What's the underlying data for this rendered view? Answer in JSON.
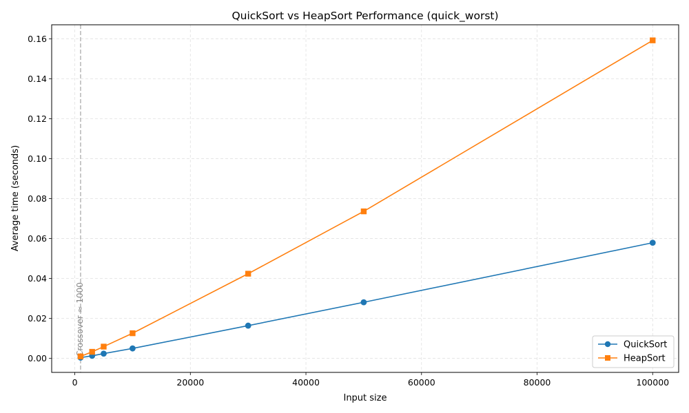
{
  "chart_data": {
    "type": "line",
    "title": "QuickSort vs HeapSort Performance (quick_worst)",
    "xlabel": "Input size",
    "ylabel": "Average time (seconds)",
    "xlim": [
      -4000,
      104500
    ],
    "ylim": [
      -0.007,
      0.167
    ],
    "xticks": [
      0,
      20000,
      40000,
      60000,
      80000,
      100000
    ],
    "yticks": [
      0.0,
      0.02,
      0.04,
      0.06,
      0.08,
      0.1,
      0.12,
      0.14,
      0.16
    ],
    "ytick_labels": [
      "0.00",
      "0.02",
      "0.04",
      "0.06",
      "0.08",
      "0.10",
      "0.12",
      "0.14",
      "0.16"
    ],
    "grid": true,
    "legend_position": "bottom-right",
    "x": [
      1000,
      3000,
      5000,
      10000,
      30000,
      50000,
      100000
    ],
    "series": [
      {
        "name": "QuickSort",
        "color": "#1f77b4",
        "marker": "circle",
        "values": [
          0.0004,
          0.0013,
          0.0024,
          0.005,
          0.0164,
          0.0281,
          0.0579
        ]
      },
      {
        "name": "HeapSort",
        "color": "#ff7f0e",
        "marker": "square",
        "values": [
          0.001,
          0.0033,
          0.0059,
          0.0126,
          0.0424,
          0.0736,
          0.1592
        ]
      }
    ],
    "annotations": [
      {
        "type": "vline",
        "x": 1000,
        "text": "Crossover ≈ 1000",
        "color": "#bbbbbb"
      }
    ]
  }
}
